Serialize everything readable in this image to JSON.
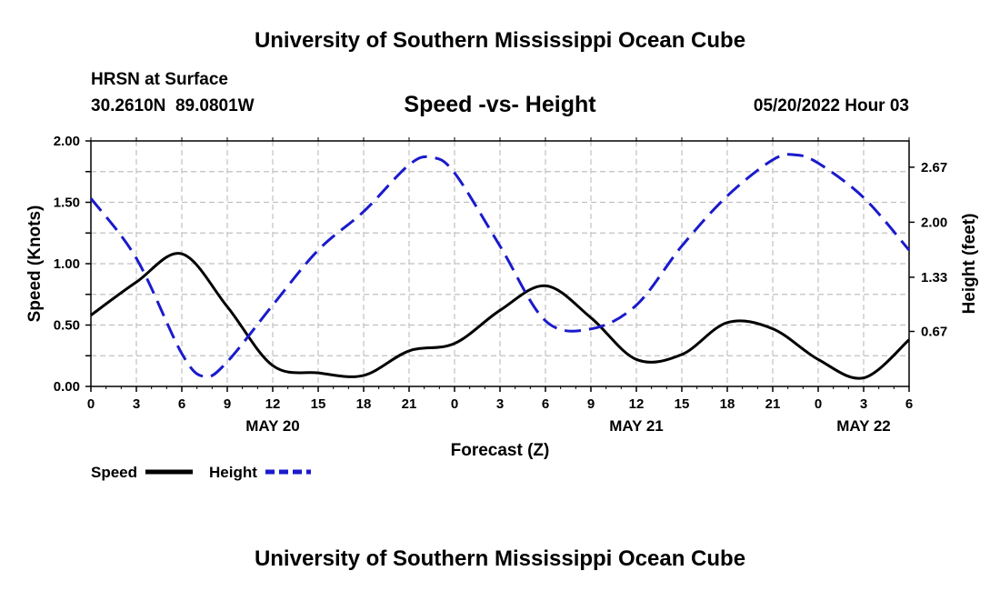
{
  "header": {
    "title": "University of Southern Mississippi Ocean Cube",
    "station": "HRSN at Surface",
    "coords": "30.2610N  89.0801W",
    "datetime": "05/20/2022 Hour 03",
    "footer_title": "University of Southern Mississippi Ocean Cube"
  },
  "colors": {
    "speed": "#000000",
    "height": "#1a1acc",
    "grid": "#c0c0c0"
  },
  "chart_data": {
    "type": "line",
    "title": "Speed -vs- Height",
    "xlabel": "Forecast (Z)",
    "ylabel": "Speed (Knots)",
    "y2label": "Height (feet)",
    "x_unit": "hours from 00Z May 20",
    "xlim": [
      0,
      54
    ],
    "ylim": [
      0,
      2
    ],
    "y2lim": [
      0,
      2.99
    ],
    "x_ticks": [
      0,
      3,
      6,
      9,
      12,
      15,
      18,
      21,
      24,
      27,
      30,
      33,
      36,
      39,
      42,
      45,
      48,
      51,
      54
    ],
    "x_tick_labels": [
      "0",
      "3",
      "6",
      "9",
      "12",
      "15",
      "18",
      "21",
      "0",
      "3",
      "6",
      "9",
      "12",
      "15",
      "18",
      "21",
      "0",
      "3",
      "6"
    ],
    "date_labels": [
      {
        "x": 12,
        "label": "MAY 20"
      },
      {
        "x": 36,
        "label": "MAY 21"
      },
      {
        "x": 51,
        "label": "MAY 22"
      }
    ],
    "y_ticks": [
      0,
      0.25,
      0.5,
      0.75,
      1.0,
      1.25,
      1.5,
      1.75,
      2.0
    ],
    "y_tick_labels": [
      {
        "value": 0,
        "label": "0.00"
      },
      {
        "value": 0.5,
        "label": "0.50"
      },
      {
        "value": 1.0,
        "label": "1.00"
      },
      {
        "value": 1.5,
        "label": "1.50"
      },
      {
        "value": 2.0,
        "label": "2.00"
      }
    ],
    "y2_tick_labels": [
      {
        "value": 0.67,
        "label": "0.67"
      },
      {
        "value": 1.33,
        "label": "1.33"
      },
      {
        "value": 2.0,
        "label": "2.00"
      },
      {
        "value": 2.67,
        "label": "2.67"
      }
    ],
    "series": [
      {
        "name": "Speed",
        "axis": "left",
        "style": "solid",
        "x": [
          0,
          3,
          6,
          9,
          12,
          15,
          18,
          21,
          24,
          27,
          30,
          33,
          36,
          39,
          42,
          45,
          48,
          51,
          54
        ],
        "values": [
          0.58,
          0.85,
          1.08,
          0.65,
          0.17,
          0.11,
          0.09,
          0.29,
          0.35,
          0.62,
          0.82,
          0.56,
          0.22,
          0.26,
          0.52,
          0.47,
          0.22,
          0.07,
          0.38
        ]
      },
      {
        "name": "Height",
        "axis": "right",
        "style": "dashed",
        "x": [
          0,
          3,
          6,
          7.5,
          9,
          12,
          15,
          18,
          21,
          22.5,
          24,
          27,
          30,
          33,
          36,
          39,
          42,
          45,
          46.5,
          48,
          51,
          54
        ],
        "values": [
          2.29,
          1.56,
          0.4,
          0.12,
          0.3,
          0.99,
          1.66,
          2.13,
          2.7,
          2.79,
          2.6,
          1.71,
          0.8,
          0.7,
          0.99,
          1.71,
          2.32,
          2.76,
          2.82,
          2.72,
          2.3,
          1.66
        ]
      }
    ],
    "legend": {
      "position": "bottom-left",
      "items": [
        {
          "label": "Speed",
          "style": "solid"
        },
        {
          "label": "Height",
          "style": "dashed"
        }
      ]
    }
  }
}
